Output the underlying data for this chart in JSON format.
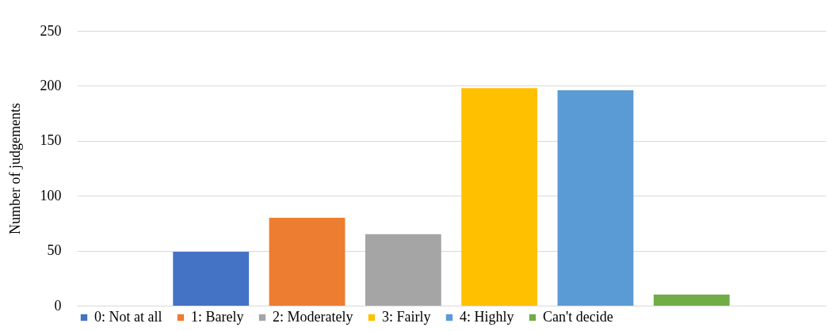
{
  "chart_data": {
    "type": "bar",
    "categories": [
      null
    ],
    "ylabel": "Number of judgements",
    "ylim": [
      0,
      250
    ],
    "yticks": [
      0,
      50,
      100,
      150,
      200,
      250
    ],
    "grid": "y",
    "legend": "bottom",
    "series": [
      {
        "name": "0: Not at all",
        "color": "#4472c4",
        "values": [
          49
        ]
      },
      {
        "name": "1: Barely",
        "color": "#ed7d31",
        "values": [
          80
        ]
      },
      {
        "name": "2: Moderately",
        "color": "#a5a5a5",
        "values": [
          65
        ]
      },
      {
        "name": "3: Fairly",
        "color": "#ffc000",
        "values": [
          198
        ]
      },
      {
        "name": "4: Highly",
        "color": "#5b9bd5",
        "values": [
          196
        ]
      },
      {
        "name": "Can't decide",
        "color": "#70ad47",
        "values": [
          10
        ]
      }
    ]
  }
}
